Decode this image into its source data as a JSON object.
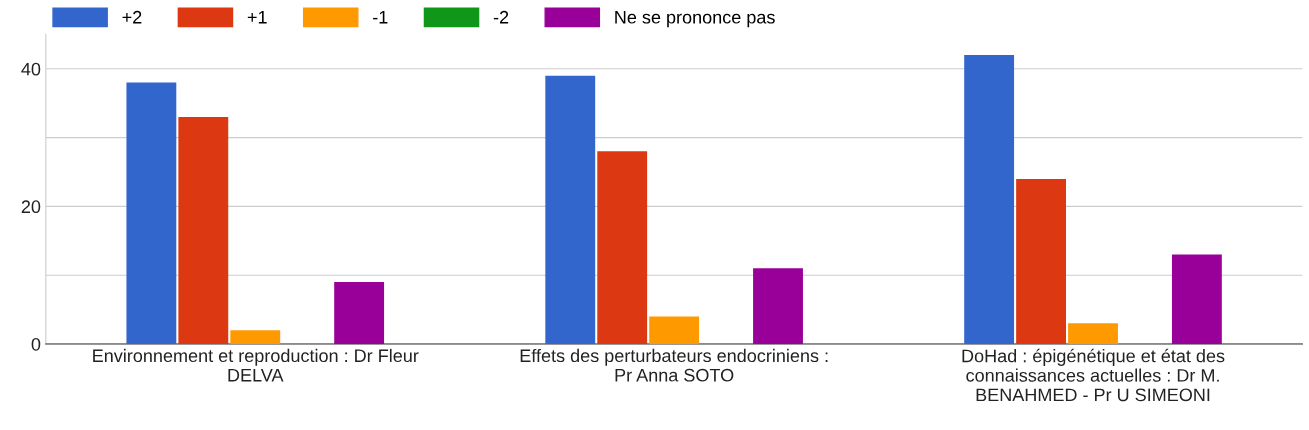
{
  "chart_data": {
    "type": "bar",
    "categories": [
      "Environnement et reproduction : Dr Fleur\nDELVA",
      "Effets des perturbateurs endocriniens :\nPr Anna SOTO",
      "DoHad : épigénétique et état des\nconnaissances actuelles : Dr M.\nBENAHMED - Pr U SIMEONI"
    ],
    "series": [
      {
        "name": "+2",
        "color": "#3366cc",
        "values": [
          38,
          39,
          42
        ]
      },
      {
        "name": "+1",
        "color": "#dc3912",
        "values": [
          33,
          28,
          24
        ]
      },
      {
        "name": "-1",
        "color": "#ff9900",
        "values": [
          2,
          4,
          3
        ]
      },
      {
        "name": "-2",
        "color": "#109618",
        "values": [
          0,
          0,
          0
        ]
      },
      {
        "name": "Ne se prononce pas",
        "color": "#990099",
        "values": [
          9,
          11,
          13
        ]
      }
    ],
    "ylim": [
      0,
      45
    ],
    "yticks": [
      0,
      {
        "value": 10,
        "label": null
      },
      20,
      {
        "value": 30,
        "label": null
      },
      40
    ],
    "grid": "y",
    "legend": "top left"
  }
}
